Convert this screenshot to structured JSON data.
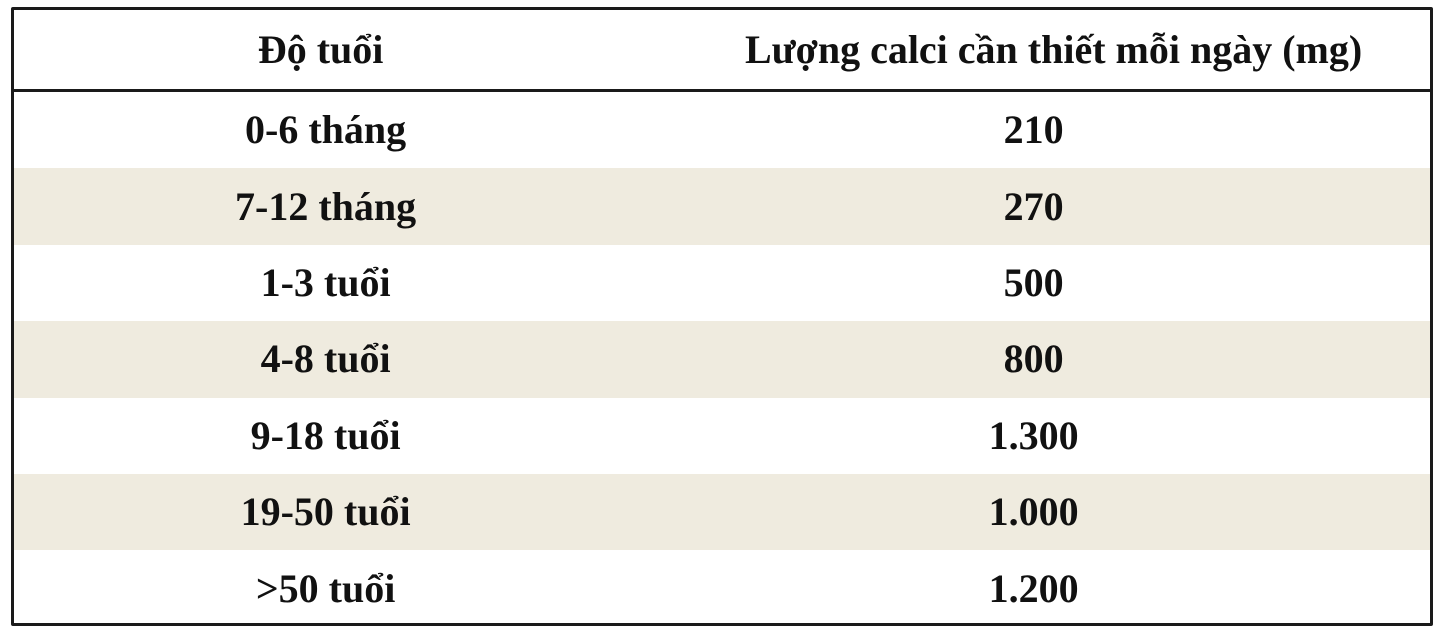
{
  "table": {
    "headers": {
      "age": "Độ tuổi",
      "calcium": "Lượng calci cần thiết mỗi ngày (mg)"
    },
    "rows": [
      {
        "age": "0-6 tháng",
        "calcium": "210"
      },
      {
        "age": "7-12 tháng",
        "calcium": "270"
      },
      {
        "age": "1-3 tuổi",
        "calcium": "500"
      },
      {
        "age": "4-8 tuổi",
        "calcium": "800"
      },
      {
        "age": "9-18 tuổi",
        "calcium": "1.300"
      },
      {
        "age": "19-50 tuổi",
        "calcium": "1.000"
      },
      {
        "age": ">50 tuổi",
        "calcium": "1.200"
      }
    ]
  },
  "colors": {
    "border": "#1a1a1a",
    "shaded_row": "#efebdf",
    "text": "#111111"
  }
}
